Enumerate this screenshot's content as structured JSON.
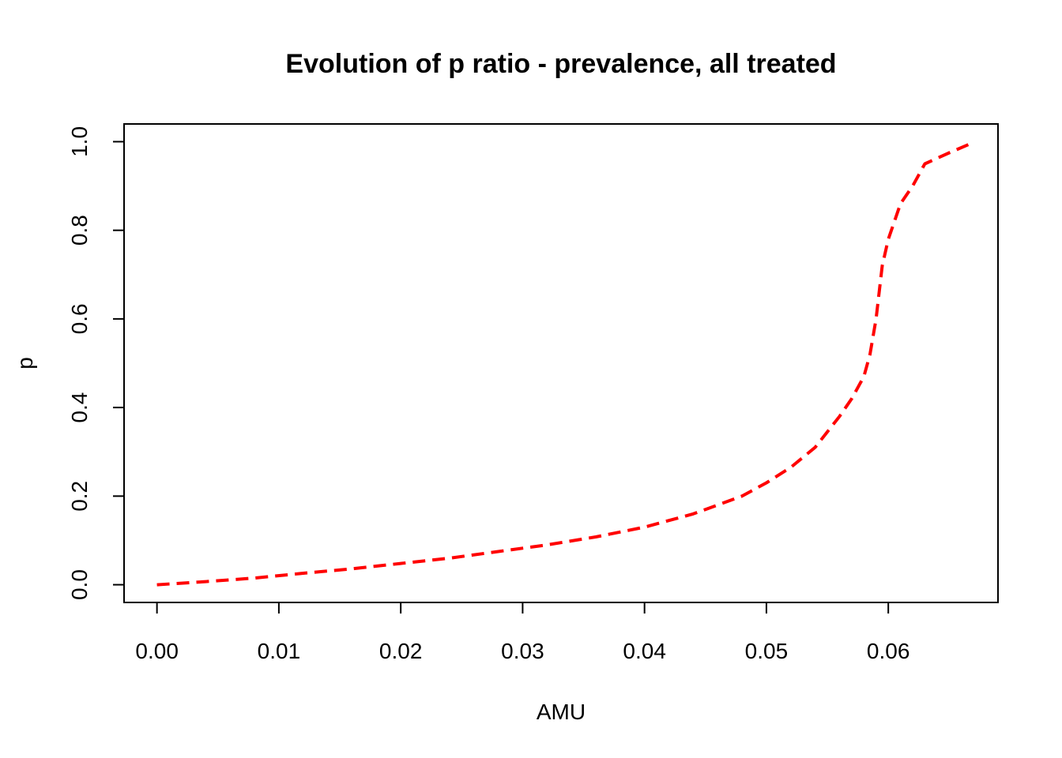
{
  "chart_data": {
    "type": "line",
    "title": "Evolution of p ratio - prevalence, all treated",
    "xlabel": "AMU",
    "ylabel": "p",
    "xlim": [
      -0.0027,
      0.069
    ],
    "ylim": [
      -0.04,
      1.04
    ],
    "x_ticks": [
      0.0,
      0.01,
      0.02,
      0.03,
      0.04,
      0.05,
      0.06
    ],
    "x_tick_labels": [
      "0.00",
      "0.01",
      "0.02",
      "0.03",
      "0.04",
      "0.05",
      "0.06"
    ],
    "y_ticks": [
      0.0,
      0.2,
      0.4,
      0.6,
      0.8,
      1.0
    ],
    "y_tick_labels": [
      "0.0",
      "0.2",
      "0.4",
      "0.6",
      "0.8",
      "1.0"
    ],
    "grid": false,
    "series": [
      {
        "color": "#ff0000",
        "line_style": "dashed",
        "x": [
          0.0,
          0.004,
          0.008,
          0.012,
          0.016,
          0.02,
          0.024,
          0.028,
          0.032,
          0.036,
          0.04,
          0.044,
          0.048,
          0.05,
          0.052,
          0.054,
          0.056,
          0.057,
          0.058,
          0.0585,
          0.059,
          0.0595,
          0.06,
          0.061,
          0.062,
          0.063,
          0.065,
          0.0667
        ],
        "y": [
          0.0,
          0.007,
          0.015,
          0.026,
          0.036,
          0.048,
          0.06,
          0.075,
          0.09,
          0.108,
          0.13,
          0.16,
          0.2,
          0.23,
          0.265,
          0.31,
          0.38,
          0.42,
          0.47,
          0.52,
          0.6,
          0.72,
          0.78,
          0.86,
          0.9,
          0.95,
          0.975,
          0.995
        ]
      }
    ]
  }
}
